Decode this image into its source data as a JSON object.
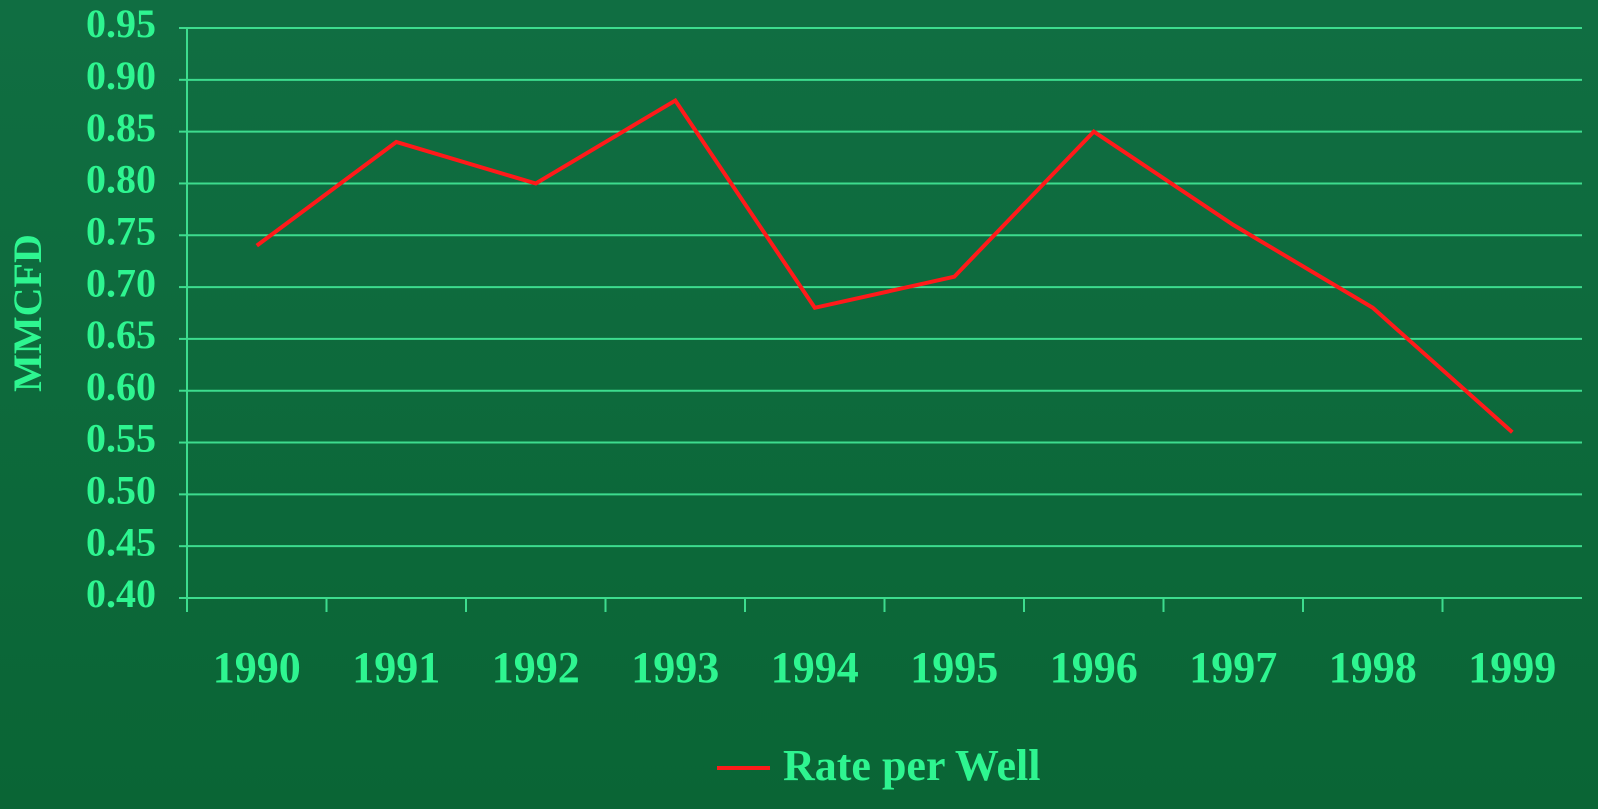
{
  "chart_data": {
    "type": "line",
    "y_label": "MMCFD",
    "categories": [
      "1990",
      "1991",
      "1992",
      "1993",
      "1994",
      "1995",
      "1996",
      "1997",
      "1998",
      "1999"
    ],
    "series": [
      {
        "name": "Rate per Well",
        "color": "#ff1a1a",
        "values": [
          0.74,
          0.84,
          0.8,
          0.88,
          0.68,
          0.71,
          0.85,
          0.76,
          0.68,
          0.56
        ]
      }
    ],
    "ylim": [
      0.4,
      0.95
    ],
    "yticks": [
      {
        "value": 0.4,
        "label": "0.40"
      },
      0.45,
      {
        "value": 0.5,
        "label": "0.50"
      },
      0.55,
      {
        "value": 0.6,
        "label": "0.60"
      },
      0.65,
      {
        "value": 0.7,
        "label": "0.70"
      },
      0.75,
      {
        "value": 0.8,
        "label": "0.80"
      },
      0.85,
      {
        "value": 0.9,
        "label": "0.90"
      },
      0.95
    ],
    "grid": true,
    "legend": "bottom"
  }
}
